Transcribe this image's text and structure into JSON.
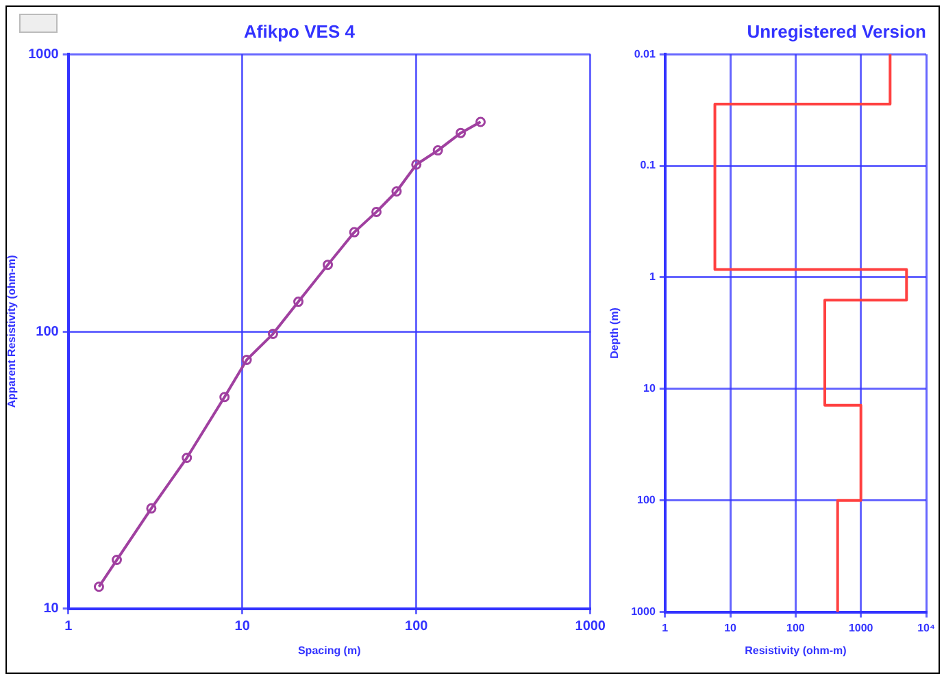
{
  "chart_data": [
    {
      "type": "line",
      "title": "Afikpo VES 4",
      "xlabel": "Spacing (m)",
      "ylabel": "Apparent Resistivity (ohm-m)",
      "log": "xy",
      "grid": true,
      "marker": "circle",
      "xlim": [
        1,
        1000
      ],
      "xticks": [
        1,
        10,
        100,
        1000
      ],
      "ylim": [
        10,
        1000
      ],
      "yticks": [
        10,
        100,
        1000
      ],
      "series": [
        {
          "color": "#a040a0",
          "x": [
            1.5,
            1.9,
            3.0,
            4.8,
            7.9,
            10.6,
            15,
            21,
            31,
            44,
            59,
            77,
            100,
            133,
            180,
            234
          ],
          "values": [
            12,
            15,
            23,
            35,
            58,
            79,
            98,
            128,
            174,
            228,
            270,
            320,
            400,
            450,
            520,
            570
          ]
        }
      ]
    },
    {
      "type": "line",
      "title": "Unregistered Version",
      "xlabel": "Resistivity (ohm-m)",
      "ylabel": "Depth (m)",
      "log": "xy",
      "grid": true,
      "marker": "none",
      "xlim": [
        1,
        10000
      ],
      "xticks": [
        1,
        10,
        100,
        1000,
        {
          "value": 10000,
          "label": "10⁴"
        }
      ],
      "ylim": [
        1000,
        0.01
      ],
      "yticks": [
        0.01,
        0.1,
        1,
        10,
        100,
        1000
      ],
      "series": [
        {
          "color": "#ff4040",
          "x": [
            2800,
            2800,
            5.8,
            5.8,
            5000,
            5000,
            280,
            280,
            1000,
            1000,
            440,
            440
          ],
          "values": [
            0.01,
            0.028,
            0.028,
            0.85,
            0.85,
            1.6,
            1.6,
            14,
            14,
            100,
            100,
            1000
          ]
        }
      ]
    }
  ]
}
